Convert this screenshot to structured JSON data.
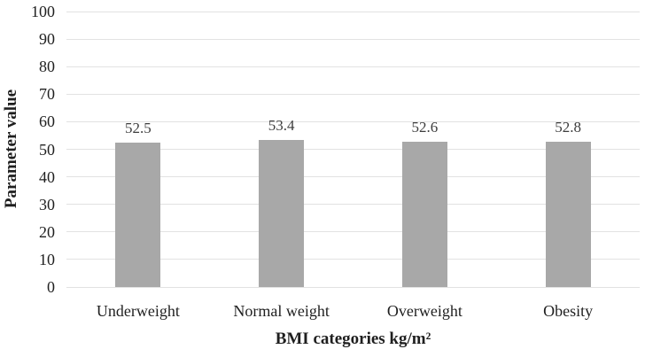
{
  "chart_data": {
    "type": "bar",
    "title": "",
    "categories": [
      "Underweight",
      "Normal weight",
      "Overweight",
      "Obesity"
    ],
    "values": [
      52.5,
      53.4,
      52.6,
      52.8
    ],
    "value_labels": [
      "52.5",
      "53.4",
      "52.6",
      "52.8"
    ],
    "xlabel": "BMI categories kg/m²",
    "ylabel": "Parameter value",
    "ylim": [
      0,
      100
    ],
    "yticks": [
      0,
      10,
      20,
      30,
      40,
      50,
      60,
      70,
      80,
      90,
      100
    ],
    "grid": "horizontal",
    "legend_position": "none",
    "bar_color": "#a8a8a8",
    "gridline_color": "#e2e2e2",
    "text_color": "#1f1f1f",
    "value_label_color": "#3d3d3d",
    "background_color": "#ffffff"
  }
}
